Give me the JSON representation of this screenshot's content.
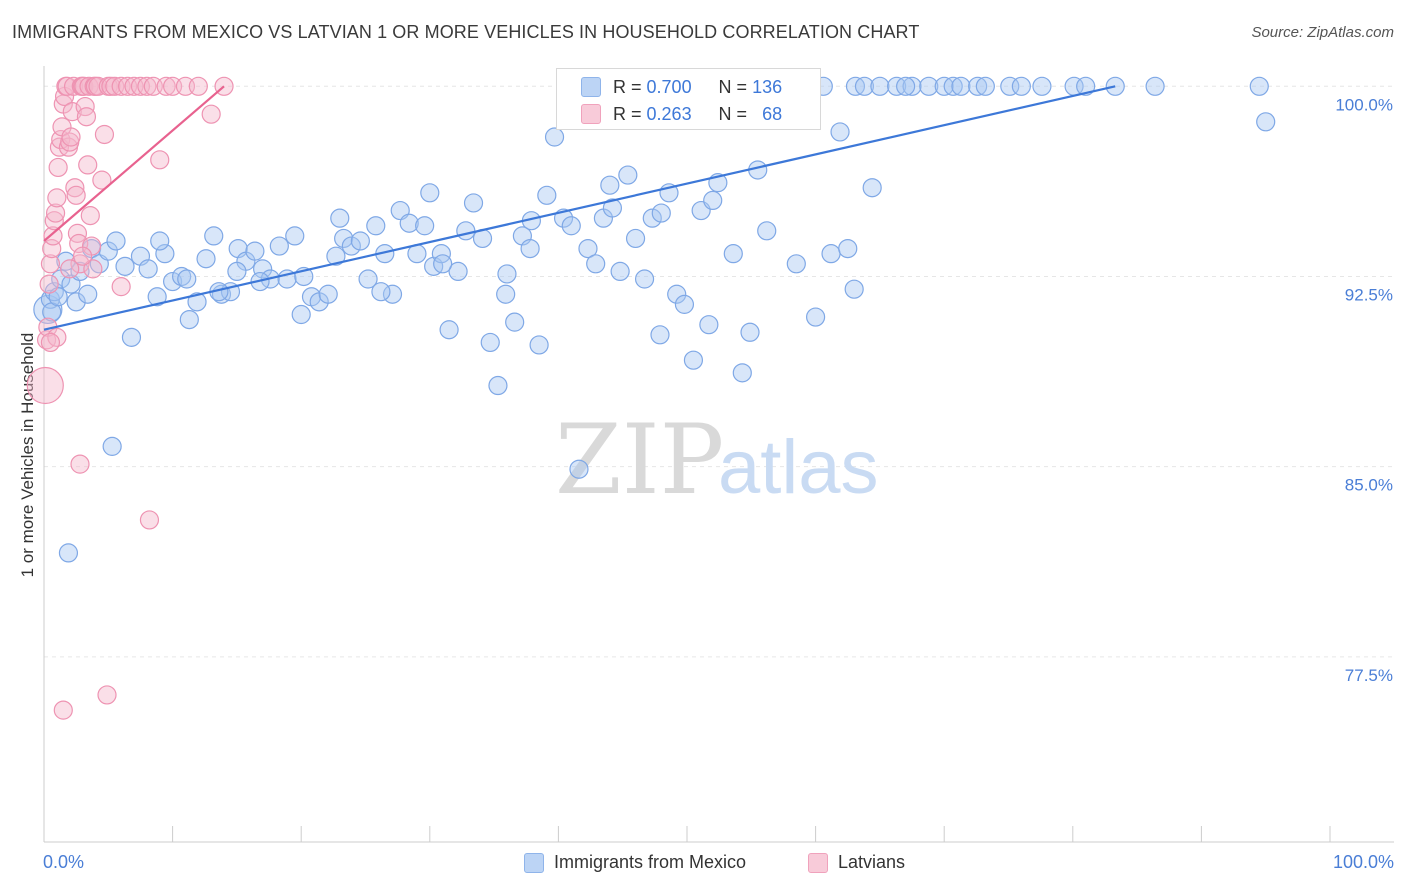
{
  "title": "IMMIGRANTS FROM MEXICO VS LATVIAN 1 OR MORE VEHICLES IN HOUSEHOLD CORRELATION CHART",
  "source": "Source: ZipAtlas.com",
  "watermark": {
    "zip": "ZIP",
    "atlas": "atlas"
  },
  "colors": {
    "blue": "#3d78d8",
    "pink": "#e8628f",
    "blue_fill": "#a9c8f2",
    "pink_fill": "#f5b8cc"
  },
  "legend_stats": [
    {
      "series": "Immigrants from Mexico",
      "r_label": "R =",
      "r_value": "0.700",
      "n_label": "N =",
      "n_value": "136"
    },
    {
      "series": "Latvians",
      "r_label": "R =",
      "r_value": "0.263",
      "n_label": "N =",
      "n_value": "68"
    }
  ],
  "chart_data": {
    "type": "scatter",
    "title": "IMMIGRANTS FROM MEXICO VS LATVIAN 1 OR MORE VEHICLES IN HOUSEHOLD CORRELATION CHART",
    "xlabel": "",
    "ylabel": "1 or more Vehicles in Household",
    "xlim": [
      0,
      100
    ],
    "ylim": [
      70.2,
      100.8
    ],
    "x_tick_labels": [
      "0.0%",
      "100.0%"
    ],
    "y_ticks": [
      100.0,
      92.5,
      85.0,
      77.5
    ],
    "y_tick_labels": [
      "100.0%",
      "92.5%",
      "85.0%",
      "77.5%"
    ],
    "legend": [
      "Immigrants from Mexico",
      "Latvians"
    ],
    "series": [
      {
        "name": "Immigrants from Mexico",
        "r": 0.7,
        "n": 136,
        "trend": {
          "x": [
            0.0,
            83.3
          ],
          "y": [
            90.4,
            100.0
          ]
        },
        "points": [
          [
            0.3,
            91.2
          ],
          [
            0.5,
            91.6
          ],
          [
            0.8,
            91.9
          ],
          [
            1.3,
            92.4
          ],
          [
            1.7,
            93.1
          ],
          [
            2.1,
            92.2
          ],
          [
            2.5,
            91.5
          ],
          [
            2.8,
            92.7
          ],
          [
            3.4,
            91.8
          ],
          [
            3.7,
            93.6
          ],
          [
            4.3,
            93.0
          ],
          [
            5.0,
            93.5
          ],
          [
            5.6,
            93.9
          ],
          [
            6.3,
            92.9
          ],
          [
            6.8,
            90.1
          ],
          [
            7.5,
            93.3
          ],
          [
            8.1,
            92.8
          ],
          [
            8.8,
            91.7
          ],
          [
            9.4,
            93.4
          ],
          [
            10.0,
            92.3
          ],
          [
            10.7,
            92.5
          ],
          [
            11.3,
            90.8
          ],
          [
            11.9,
            91.5
          ],
          [
            12.6,
            93.2
          ],
          [
            13.2,
            94.1
          ],
          [
            13.8,
            91.8
          ],
          [
            14.5,
            91.9
          ],
          [
            15.1,
            93.6
          ],
          [
            15.7,
            93.1
          ],
          [
            16.4,
            93.5
          ],
          [
            17.0,
            92.8
          ],
          [
            17.6,
            92.4
          ],
          [
            18.3,
            93.7
          ],
          [
            18.9,
            92.4
          ],
          [
            19.5,
            94.1
          ],
          [
            20.2,
            92.5
          ],
          [
            20.8,
            91.7
          ],
          [
            21.4,
            91.5
          ],
          [
            22.1,
            91.8
          ],
          [
            22.7,
            93.3
          ],
          [
            23.3,
            94.0
          ],
          [
            23.9,
            93.7
          ],
          [
            24.6,
            93.9
          ],
          [
            25.2,
            92.4
          ],
          [
            25.8,
            94.5
          ],
          [
            26.5,
            93.4
          ],
          [
            27.1,
            91.8
          ],
          [
            27.7,
            95.1
          ],
          [
            28.4,
            94.6
          ],
          [
            29.0,
            93.4
          ],
          [
            29.6,
            94.5
          ],
          [
            30.3,
            92.9
          ],
          [
            30.9,
            93.4
          ],
          [
            31.5,
            90.4
          ],
          [
            32.2,
            92.7
          ],
          [
            32.8,
            94.3
          ],
          [
            33.4,
            95.4
          ],
          [
            34.1,
            94.0
          ],
          [
            34.7,
            89.9
          ],
          [
            35.3,
            88.2
          ],
          [
            35.9,
            91.8
          ],
          [
            36.6,
            90.7
          ],
          [
            37.2,
            94.1
          ],
          [
            37.8,
            93.6
          ],
          [
            38.5,
            89.8
          ],
          [
            39.1,
            95.7
          ],
          [
            39.7,
            98.0
          ],
          [
            40.4,
            94.8
          ],
          [
            41.0,
            94.5
          ],
          [
            41.6,
            84.9
          ],
          [
            42.3,
            93.6
          ],
          [
            42.9,
            93.0
          ],
          [
            43.5,
            94.8
          ],
          [
            44.2,
            95.2
          ],
          [
            44.8,
            92.7
          ],
          [
            45.4,
            96.5
          ],
          [
            46.0,
            94.0
          ],
          [
            46.7,
            92.4
          ],
          [
            47.3,
            94.8
          ],
          [
            47.9,
            90.2
          ],
          [
            48.6,
            95.8
          ],
          [
            49.2,
            91.8
          ],
          [
            49.8,
            91.4
          ],
          [
            50.5,
            89.2
          ],
          [
            51.1,
            95.1
          ],
          [
            51.7,
            90.6
          ],
          [
            52.4,
            96.2
          ],
          [
            53.0,
            100.0
          ],
          [
            53.6,
            93.4
          ],
          [
            54.3,
            88.7
          ],
          [
            54.9,
            90.3
          ],
          [
            55.5,
            96.7
          ],
          [
            56.2,
            94.3
          ],
          [
            56.8,
            100.0
          ],
          [
            57.4,
            99.6
          ],
          [
            58.0,
            99.0
          ],
          [
            58.7,
            100.0
          ],
          [
            59.3,
            100.0
          ],
          [
            60.0,
            90.9
          ],
          [
            60.6,
            100.0
          ],
          [
            61.2,
            93.4
          ],
          [
            61.9,
            98.2
          ],
          [
            62.5,
            93.6
          ],
          [
            63.1,
            100.0
          ],
          [
            63.8,
            100.0
          ],
          [
            64.4,
            96.0
          ],
          [
            65.0,
            100.0
          ],
          [
            66.3,
            100.0
          ],
          [
            67.5,
            100.0
          ],
          [
            68.8,
            100.0
          ],
          [
            70.0,
            100.0
          ],
          [
            70.7,
            100.0
          ],
          [
            71.3,
            100.0
          ],
          [
            72.6,
            100.0
          ],
          [
            75.1,
            100.0
          ],
          [
            77.6,
            100.0
          ],
          [
            80.1,
            100.0
          ],
          [
            83.3,
            100.0
          ],
          [
            86.4,
            100.0
          ],
          [
            94.5,
            100.0
          ],
          [
            95.0,
            98.6
          ],
          [
            0.6,
            91.1
          ],
          [
            1.1,
            91.7
          ],
          [
            5.3,
            85.8
          ],
          [
            1.9,
            81.6
          ],
          [
            13.6,
            91.9
          ],
          [
            26.2,
            91.9
          ],
          [
            37.9,
            94.7
          ],
          [
            11.1,
            92.4
          ],
          [
            16.8,
            92.3
          ],
          [
            31.0,
            93.0
          ],
          [
            44.0,
            96.1
          ],
          [
            67.0,
            100.0
          ],
          [
            73.2,
            100.0
          ],
          [
            76.0,
            100.0
          ],
          [
            81.0,
            100.0
          ],
          [
            52.0,
            95.5
          ],
          [
            58.5,
            93.0
          ],
          [
            48.0,
            95.0
          ],
          [
            63.0,
            92.0
          ],
          [
            30.0,
            95.8
          ],
          [
            23.0,
            94.8
          ],
          [
            36.0,
            92.6
          ],
          [
            20.0,
            91.0
          ],
          [
            15.0,
            92.7
          ],
          [
            9.0,
            93.9
          ]
        ]
      },
      {
        "name": "Latvians",
        "r": 0.263,
        "n": 68,
        "trend": {
          "x": [
            0.0,
            14.0
          ],
          "y": [
            93.9,
            100.0
          ]
        },
        "points": [
          [
            0.1,
            88.2
          ],
          [
            0.2,
            90.0
          ],
          [
            0.3,
            90.5
          ],
          [
            0.4,
            92.2
          ],
          [
            0.5,
            93.0
          ],
          [
            0.6,
            93.6
          ],
          [
            0.7,
            94.1
          ],
          [
            0.8,
            94.7
          ],
          [
            0.9,
            95.0
          ],
          [
            1.0,
            95.6
          ],
          [
            1.1,
            96.8
          ],
          [
            1.2,
            97.6
          ],
          [
            1.3,
            97.9
          ],
          [
            1.4,
            98.4
          ],
          [
            1.5,
            99.3
          ],
          [
            1.6,
            99.6
          ],
          [
            1.7,
            100.0
          ],
          [
            1.8,
            100.0
          ],
          [
            1.9,
            97.6
          ],
          [
            2.0,
            97.8
          ],
          [
            2.1,
            98.0
          ],
          [
            2.2,
            99.0
          ],
          [
            2.3,
            100.0
          ],
          [
            2.4,
            96.0
          ],
          [
            2.5,
            95.7
          ],
          [
            2.6,
            94.2
          ],
          [
            2.7,
            93.8
          ],
          [
            2.8,
            93.0
          ],
          [
            2.9,
            100.0
          ],
          [
            3.0,
            100.0
          ],
          [
            3.1,
            100.0
          ],
          [
            3.2,
            99.2
          ],
          [
            3.3,
            98.8
          ],
          [
            3.4,
            96.9
          ],
          [
            3.5,
            100.0
          ],
          [
            3.6,
            94.9
          ],
          [
            3.7,
            93.7
          ],
          [
            3.8,
            92.8
          ],
          [
            3.9,
            100.0
          ],
          [
            4.0,
            100.0
          ],
          [
            4.2,
            100.0
          ],
          [
            4.5,
            96.3
          ],
          [
            4.7,
            98.1
          ],
          [
            5.0,
            100.0
          ],
          [
            5.2,
            100.0
          ],
          [
            5.5,
            100.0
          ],
          [
            6.0,
            100.0
          ],
          [
            6.5,
            100.0
          ],
          [
            7.0,
            100.0
          ],
          [
            7.5,
            100.0
          ],
          [
            8.0,
            100.0
          ],
          [
            8.5,
            100.0
          ],
          [
            9.0,
            97.1
          ],
          [
            9.5,
            100.0
          ],
          [
            10.0,
            100.0
          ],
          [
            11.0,
            100.0
          ],
          [
            12.0,
            100.0
          ],
          [
            13.0,
            98.9
          ],
          [
            14.0,
            100.0
          ],
          [
            2.8,
            85.1
          ],
          [
            8.2,
            82.9
          ],
          [
            1.5,
            75.4
          ],
          [
            4.9,
            76.0
          ],
          [
            1.0,
            90.1
          ],
          [
            0.5,
            89.9
          ],
          [
            2.0,
            92.8
          ],
          [
            6.0,
            92.1
          ],
          [
            3.0,
            93.3
          ]
        ]
      }
    ]
  },
  "x_axis": {
    "left_label": "0.0%",
    "right_label": "100.0%"
  }
}
